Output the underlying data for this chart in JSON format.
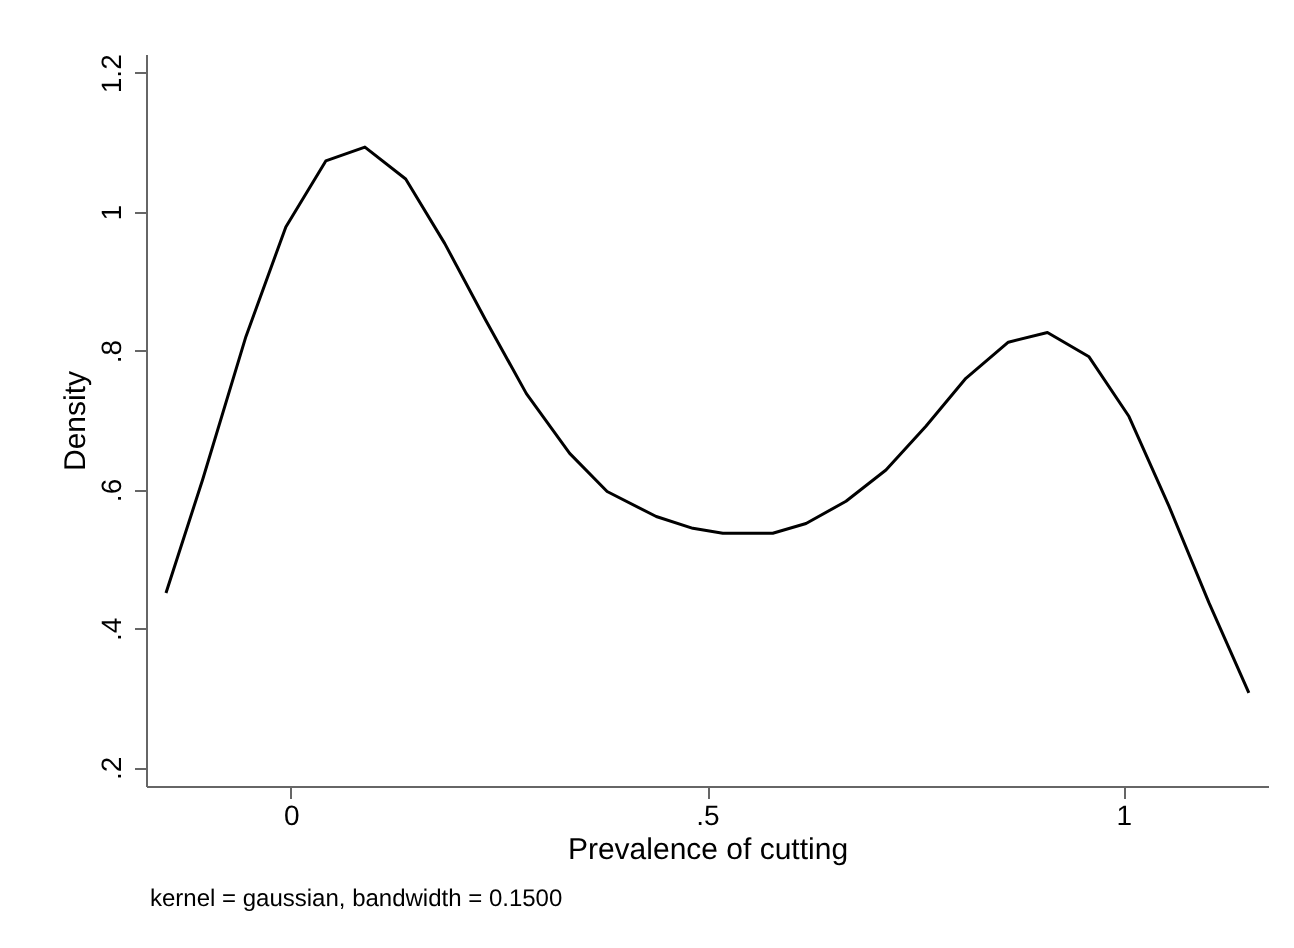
{
  "chart_data": {
    "type": "line",
    "xlabel": "Prevalence of cutting",
    "ylabel": "Density",
    "annotations": [
      "kernel = gaussian, bandwidth = 0.1500"
    ],
    "x": [
      -0.15,
      -0.106,
      -0.054,
      -0.006,
      0.042,
      0.089,
      0.138,
      0.185,
      0.234,
      0.283,
      0.335,
      0.38,
      0.439,
      0.483,
      0.519,
      0.579,
      0.619,
      0.667,
      0.715,
      0.763,
      0.811,
      0.862,
      0.909,
      0.959,
      1.007,
      1.055,
      1.103,
      1.151
    ],
    "series": [
      {
        "color": "#000000",
        "values": [
          0.451,
          0.614,
          0.82,
          0.978,
          1.073,
          1.093,
          1.047,
          0.954,
          0.844,
          0.738,
          0.652,
          0.597,
          0.561,
          0.544,
          0.537,
          0.537,
          0.551,
          0.583,
          0.628,
          0.691,
          0.76,
          0.812,
          0.826,
          0.791,
          0.705,
          0.576,
          0.437,
          0.307
        ]
      }
    ],
    "xlim": [
      -0.174,
      1.174
    ],
    "ylim": [
      0.173,
      1.227
    ],
    "xticks": [
      0,
      {
        "value": 0.5,
        "label": ".5"
      },
      1
    ],
    "yticks": [
      {
        "value": 0.2,
        "label": ".2"
      },
      {
        "value": 0.4,
        "label": ".4"
      },
      {
        "value": 0.6,
        "label": ".6"
      },
      {
        "value": 0.8,
        "label": ".8"
      },
      1,
      {
        "value": 1.2,
        "label": "1.2"
      }
    ],
    "grid": false,
    "marker": "none",
    "line_style": "solid"
  }
}
